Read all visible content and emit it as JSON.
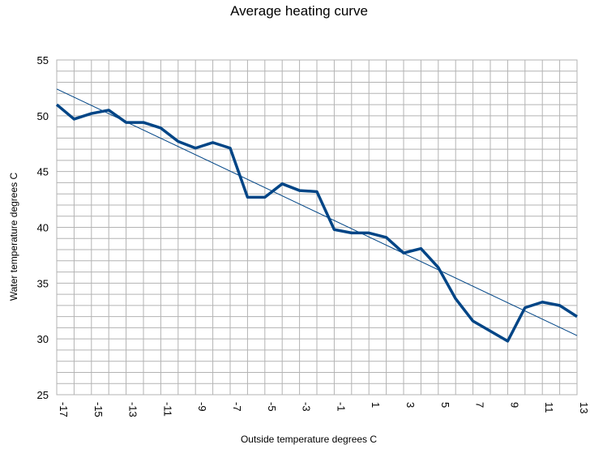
{
  "chart_data": {
    "type": "line",
    "title": "Average heating curve",
    "xlabel": "Outside temperature degrees C",
    "ylabel": "Water temperature degrees C",
    "xlim": [
      -17,
      13
    ],
    "ylim": [
      25,
      55
    ],
    "x_ticks": [
      -17,
      -15,
      -13,
      -11,
      -9,
      -7,
      -5,
      -3,
      -1,
      1,
      3,
      5,
      7,
      9,
      11,
      13
    ],
    "y_ticks": [
      25,
      30,
      35,
      40,
      45,
      50,
      55
    ],
    "grid": true,
    "x": [
      -17,
      -16,
      -15,
      -14,
      -13,
      -12,
      -11,
      -10,
      -9,
      -8,
      -7,
      -6,
      -5,
      -4,
      -3,
      -2,
      -1,
      0,
      1,
      2,
      3,
      4,
      5,
      6,
      7,
      8,
      9,
      10,
      11,
      12,
      13
    ],
    "series": [
      {
        "values": [
          51.0,
          49.7,
          50.2,
          50.5,
          49.4,
          49.4,
          48.9,
          47.7,
          47.1,
          47.6,
          47.1,
          42.7,
          42.7,
          43.9,
          43.3,
          43.2,
          39.8,
          39.5,
          39.5,
          39.1,
          37.7,
          38.1,
          36.4,
          33.6,
          31.6,
          30.7,
          29.8,
          32.8,
          33.3,
          33.0,
          32.0
        ],
        "color": "#004586",
        "style": "thick"
      },
      {
        "values": [
          52.4,
          30.3
        ],
        "x": [
          -17,
          13
        ],
        "color": "#004586",
        "style": "trendline"
      }
    ]
  }
}
